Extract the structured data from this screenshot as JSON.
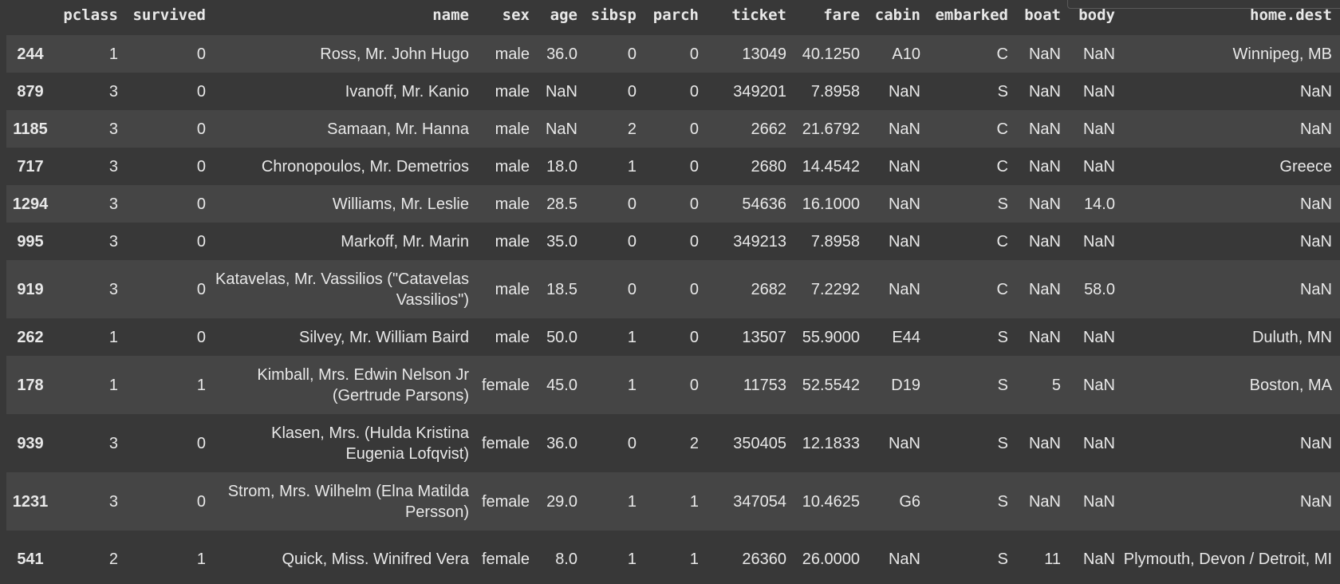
{
  "columns": [
    "",
    "pclass",
    "survived",
    "name",
    "sex",
    "age",
    "sibsp",
    "parch",
    "ticket",
    "fare",
    "cabin",
    "embarked",
    "boat",
    "body",
    "home.dest"
  ],
  "rows": [
    {
      "idx": "244",
      "pclass": "1",
      "survived": "0",
      "name": "Ross, Mr. John Hugo",
      "sex": "male",
      "age": "36.0",
      "sibsp": "0",
      "parch": "0",
      "ticket": "13049",
      "fare": "40.1250",
      "cabin": "A10",
      "embarked": "C",
      "boat": "NaN",
      "body": "NaN",
      "home_dest": "Winnipeg, MB"
    },
    {
      "idx": "879",
      "pclass": "3",
      "survived": "0",
      "name": "Ivanoff, Mr. Kanio",
      "sex": "male",
      "age": "NaN",
      "sibsp": "0",
      "parch": "0",
      "ticket": "349201",
      "fare": "7.8958",
      "cabin": "NaN",
      "embarked": "S",
      "boat": "NaN",
      "body": "NaN",
      "home_dest": "NaN"
    },
    {
      "idx": "1185",
      "pclass": "3",
      "survived": "0",
      "name": "Samaan, Mr. Hanna",
      "sex": "male",
      "age": "NaN",
      "sibsp": "2",
      "parch": "0",
      "ticket": "2662",
      "fare": "21.6792",
      "cabin": "NaN",
      "embarked": "C",
      "boat": "NaN",
      "body": "NaN",
      "home_dest": "NaN"
    },
    {
      "idx": "717",
      "pclass": "3",
      "survived": "0",
      "name": "Chronopoulos, Mr. Demetrios",
      "sex": "male",
      "age": "18.0",
      "sibsp": "1",
      "parch": "0",
      "ticket": "2680",
      "fare": "14.4542",
      "cabin": "NaN",
      "embarked": "C",
      "boat": "NaN",
      "body": "NaN",
      "home_dest": "Greece"
    },
    {
      "idx": "1294",
      "pclass": "3",
      "survived": "0",
      "name": "Williams, Mr. Leslie",
      "sex": "male",
      "age": "28.5",
      "sibsp": "0",
      "parch": "0",
      "ticket": "54636",
      "fare": "16.1000",
      "cabin": "NaN",
      "embarked": "S",
      "boat": "NaN",
      "body": "14.0",
      "home_dest": "NaN"
    },
    {
      "idx": "995",
      "pclass": "3",
      "survived": "0",
      "name": "Markoff, Mr. Marin",
      "sex": "male",
      "age": "35.0",
      "sibsp": "0",
      "parch": "0",
      "ticket": "349213",
      "fare": "7.8958",
      "cabin": "NaN",
      "embarked": "C",
      "boat": "NaN",
      "body": "NaN",
      "home_dest": "NaN"
    },
    {
      "idx": "919",
      "pclass": "3",
      "survived": "0",
      "name": "Katavelas, Mr. Vassilios (\"Catavelas Vassilios\")",
      "sex": "male",
      "age": "18.5",
      "sibsp": "0",
      "parch": "0",
      "ticket": "2682",
      "fare": "7.2292",
      "cabin": "NaN",
      "embarked": "C",
      "boat": "NaN",
      "body": "58.0",
      "home_dest": "NaN"
    },
    {
      "idx": "262",
      "pclass": "1",
      "survived": "0",
      "name": "Silvey, Mr. William Baird",
      "sex": "male",
      "age": "50.0",
      "sibsp": "1",
      "parch": "0",
      "ticket": "13507",
      "fare": "55.9000",
      "cabin": "E44",
      "embarked": "S",
      "boat": "NaN",
      "body": "NaN",
      "home_dest": "Duluth, MN"
    },
    {
      "idx": "178",
      "pclass": "1",
      "survived": "1",
      "name": "Kimball, Mrs. Edwin Nelson Jr (Gertrude Parsons)",
      "sex": "female",
      "age": "45.0",
      "sibsp": "1",
      "parch": "0",
      "ticket": "11753",
      "fare": "52.5542",
      "cabin": "D19",
      "embarked": "S",
      "boat": "5",
      "body": "NaN",
      "home_dest": "Boston, MA"
    },
    {
      "idx": "939",
      "pclass": "3",
      "survived": "0",
      "name": "Klasen, Mrs. (Hulda Kristina Eugenia Lofqvist)",
      "sex": "female",
      "age": "36.0",
      "sibsp": "0",
      "parch": "2",
      "ticket": "350405",
      "fare": "12.1833",
      "cabin": "NaN",
      "embarked": "S",
      "boat": "NaN",
      "body": "NaN",
      "home_dest": "NaN"
    },
    {
      "idx": "1231",
      "pclass": "3",
      "survived": "0",
      "name": "Strom, Mrs. Wilhelm (Elna Matilda Persson)",
      "sex": "female",
      "age": "29.0",
      "sibsp": "1",
      "parch": "1",
      "ticket": "347054",
      "fare": "10.4625",
      "cabin": "G6",
      "embarked": "S",
      "boat": "NaN",
      "body": "NaN",
      "home_dest": "NaN"
    },
    {
      "idx": "541",
      "pclass": "2",
      "survived": "1",
      "name": "Quick, Miss. Winifred Vera",
      "sex": "female",
      "age": "8.0",
      "sibsp": "1",
      "parch": "1",
      "ticket": "26360",
      "fare": "26.0000",
      "cabin": "NaN",
      "embarked": "S",
      "boat": "11",
      "body": "NaN",
      "home_dest": "Plymouth, Devon / Detroit, MI"
    }
  ]
}
